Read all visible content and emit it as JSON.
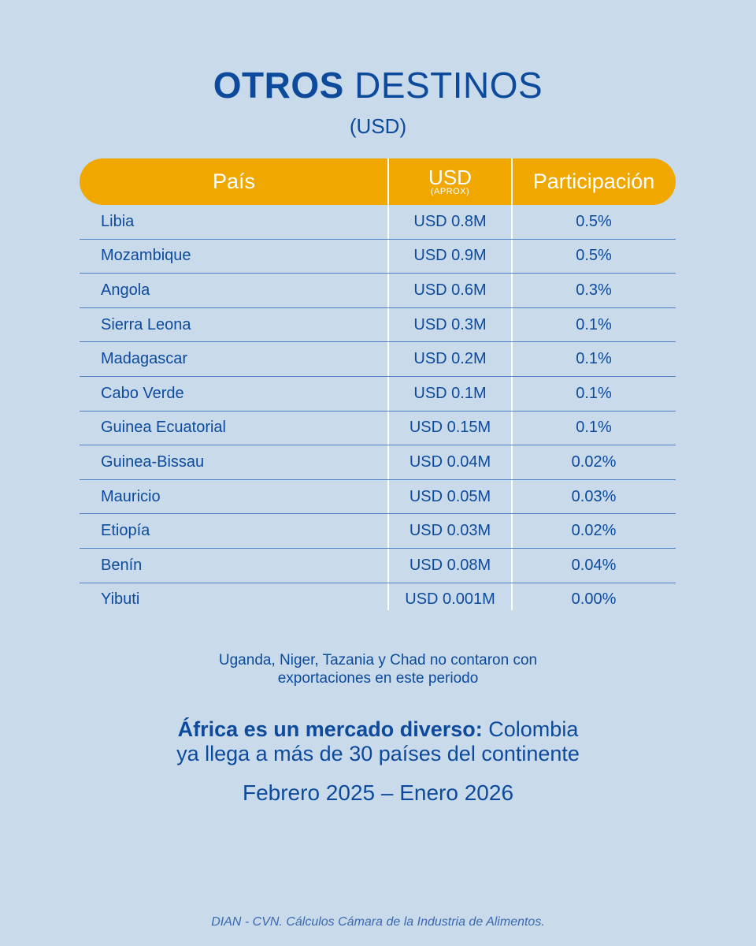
{
  "title": {
    "bold": "OTROS",
    "rest": "DESTINOS"
  },
  "subtitle": "(USD)",
  "table": {
    "headers": {
      "pais": "País",
      "usd": "USD",
      "usd_sub": "(APROX)",
      "participacion": "Participación"
    },
    "rows": [
      {
        "pais": "Libia",
        "usd": "USD 0.8M",
        "part": "0.5%"
      },
      {
        "pais": "Mozambique",
        "usd": "USD 0.9M",
        "part": "0.5%"
      },
      {
        "pais": "Angola",
        "usd": "USD 0.6M",
        "part": "0.3%"
      },
      {
        "pais": "Sierra Leona",
        "usd": "USD 0.3M",
        "part": "0.1%"
      },
      {
        "pais": "Madagascar",
        "usd": "USD 0.2M",
        "part": "0.1%"
      },
      {
        "pais": "Cabo Verde",
        "usd": "USD 0.1M",
        "part": "0.1%"
      },
      {
        "pais": "Guinea Ecuatorial",
        "usd": "USD 0.15M",
        "part": "0.1%"
      },
      {
        "pais": "Guinea-Bissau",
        "usd": "USD 0.04M",
        "part": "0.02%"
      },
      {
        "pais": "Mauricio",
        "usd": "USD 0.05M",
        "part": "0.03%"
      },
      {
        "pais": "Etiopía",
        "usd": "USD 0.03M",
        "part": "0.02%"
      },
      {
        "pais": "Benín",
        "usd": "USD 0.08M",
        "part": "0.04%"
      },
      {
        "pais": "Yibuti",
        "usd": "USD 0.001M",
        "part": "0.00%"
      }
    ]
  },
  "note": {
    "line1": "Uganda, Niger, Tazania y Chad no contaron con",
    "line2": "exportaciones en este periodo"
  },
  "highlight": {
    "bold": "África es un mercado diverso:",
    "rest1": " Colombia",
    "line2": "ya llega a más de 30 países del continente"
  },
  "period": "Febrero 2025 – Enero 2026",
  "source": "DIAN - CVN. Cálculos Cámara de la Industria de Alimentos.",
  "colors": {
    "background": "#c9dbeb",
    "header": "#f0a800",
    "text": "#0d4a9c"
  }
}
